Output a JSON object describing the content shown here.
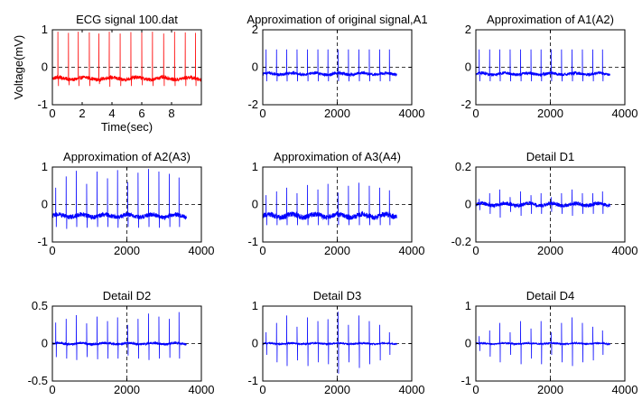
{
  "chart_data": [
    {
      "type": "line",
      "title": "ECG signal 100.dat",
      "xlabel": "Time(sec)",
      "ylabel": "Voltage(mV)",
      "xlim": [
        0,
        10
      ],
      "ylim": [
        -1,
        1
      ],
      "xticks": [
        0,
        2,
        4,
        6,
        8
      ],
      "yticks": [
        -1,
        0,
        1
      ],
      "color": "#ff0000",
      "grid": false,
      "baseline": -0.3,
      "noise": 0.05,
      "beats": [
        {
          "x": 0.37,
          "peak": 0.95,
          "dip": -0.5
        },
        {
          "x": 1.08,
          "peak": 0.92,
          "dip": -0.48
        },
        {
          "x": 1.74,
          "peak": 0.95,
          "dip": -0.5
        },
        {
          "x": 2.48,
          "peak": 0.93,
          "dip": -0.5
        },
        {
          "x": 3.12,
          "peak": 0.9,
          "dip": -0.45
        },
        {
          "x": 3.82,
          "peak": 0.95,
          "dip": -0.52
        },
        {
          "x": 4.55,
          "peak": 0.9,
          "dip": -0.5
        },
        {
          "x": 5.27,
          "peak": 0.94,
          "dip": -0.5
        },
        {
          "x": 6.0,
          "peak": 0.93,
          "dip": -0.48
        },
        {
          "x": 6.72,
          "peak": 0.95,
          "dip": -0.5
        },
        {
          "x": 7.47,
          "peak": 0.9,
          "dip": -0.5
        },
        {
          "x": 8.2,
          "peak": 0.95,
          "dip": -0.5
        },
        {
          "x": 8.92,
          "peak": 0.93,
          "dip": -0.5
        },
        {
          "x": 9.6,
          "peak": 0.92,
          "dip": -0.5
        }
      ]
    },
    {
      "type": "line",
      "title": "Approximation of original signal,A1",
      "xlim": [
        0,
        4000
      ],
      "ylim": [
        -2,
        2
      ],
      "xticks": [
        0,
        2000,
        4000
      ],
      "yticks": [
        -2,
        0,
        2
      ],
      "color": "#0000ff",
      "grid": false,
      "baseline": -0.35,
      "noise": 0.08,
      "center_line": 2000,
      "beats": [
        {
          "x": 90,
          "peak": 0.95,
          "dip": -0.75
        },
        {
          "x": 370,
          "peak": 0.95,
          "dip": -0.75
        },
        {
          "x": 640,
          "peak": 0.95,
          "dip": -0.75
        },
        {
          "x": 920,
          "peak": 0.95,
          "dip": -0.75
        },
        {
          "x": 1200,
          "peak": 0.95,
          "dip": -0.75
        },
        {
          "x": 1480,
          "peak": 0.95,
          "dip": -0.75
        },
        {
          "x": 1750,
          "peak": 0.95,
          "dip": -0.75
        },
        {
          "x": 2020,
          "peak": 0.95,
          "dip": -0.75
        },
        {
          "x": 2300,
          "peak": 0.95,
          "dip": -0.75
        },
        {
          "x": 2580,
          "peak": 0.95,
          "dip": -0.75
        },
        {
          "x": 2860,
          "peak": 0.95,
          "dip": -0.75
        },
        {
          "x": 3140,
          "peak": 0.95,
          "dip": -0.75
        },
        {
          "x": 3400,
          "peak": 0.95,
          "dip": -0.75
        }
      ],
      "x_end": 3600
    },
    {
      "type": "line",
      "title": "Approximation of A1(A2)",
      "xlim": [
        0,
        4000
      ],
      "ylim": [
        -2,
        2
      ],
      "xticks": [
        0,
        2000,
        4000
      ],
      "yticks": [
        -2,
        0,
        2
      ],
      "color": "#0000ff",
      "grid": false,
      "baseline": -0.35,
      "noise": 0.08,
      "center_line": 2000,
      "beats": [
        {
          "x": 90,
          "peak": 0.95,
          "dip": -0.75
        },
        {
          "x": 370,
          "peak": 0.95,
          "dip": -0.75
        },
        {
          "x": 640,
          "peak": 0.95,
          "dip": -0.75
        },
        {
          "x": 920,
          "peak": 0.95,
          "dip": -0.75
        },
        {
          "x": 1200,
          "peak": 0.95,
          "dip": -0.75
        },
        {
          "x": 1480,
          "peak": 0.95,
          "dip": -0.75
        },
        {
          "x": 1750,
          "peak": 0.95,
          "dip": -0.75
        },
        {
          "x": 2020,
          "peak": 0.95,
          "dip": -0.75
        },
        {
          "x": 2300,
          "peak": 0.95,
          "dip": -0.75
        },
        {
          "x": 2580,
          "peak": 0.95,
          "dip": -0.75
        },
        {
          "x": 2860,
          "peak": 0.95,
          "dip": -0.75
        },
        {
          "x": 3140,
          "peak": 0.95,
          "dip": -0.75
        },
        {
          "x": 3400,
          "peak": 0.95,
          "dip": -0.75
        }
      ],
      "x_end": 3600
    },
    {
      "type": "line",
      "title": "Approximation of A2(A3)",
      "xlim": [
        0,
        4000
      ],
      "ylim": [
        -1,
        1
      ],
      "xticks": [
        0,
        2000,
        4000
      ],
      "yticks": [
        -1,
        0,
        1
      ],
      "color": "#0000ff",
      "grid": false,
      "baseline": -0.3,
      "noise": 0.06,
      "center_line": 2000,
      "beats": [
        {
          "x": 90,
          "peak": 0.45,
          "dip": -0.6
        },
        {
          "x": 370,
          "peak": 0.75,
          "dip": -0.65
        },
        {
          "x": 640,
          "peak": 0.9,
          "dip": -0.6
        },
        {
          "x": 920,
          "peak": 0.55,
          "dip": -0.62
        },
        {
          "x": 1200,
          "peak": 0.88,
          "dip": -0.6
        },
        {
          "x": 1480,
          "peak": 0.7,
          "dip": -0.6
        },
        {
          "x": 1750,
          "peak": 0.92,
          "dip": -0.62
        },
        {
          "x": 2020,
          "peak": 0.6,
          "dip": -0.6
        },
        {
          "x": 2300,
          "peak": 0.85,
          "dip": -0.62
        },
        {
          "x": 2580,
          "peak": 0.95,
          "dip": -0.6
        },
        {
          "x": 2860,
          "peak": 0.88,
          "dip": -0.62
        },
        {
          "x": 3140,
          "peak": 0.82,
          "dip": -0.6
        },
        {
          "x": 3400,
          "peak": 0.72,
          "dip": -0.6
        }
      ],
      "x_end": 3600
    },
    {
      "type": "line",
      "title": "Approximation of A3(A4)",
      "xlim": [
        0,
        4000
      ],
      "ylim": [
        -1,
        1
      ],
      "xticks": [
        0,
        2000,
        4000
      ],
      "yticks": [
        -1,
        0,
        1
      ],
      "color": "#0000ff",
      "grid": false,
      "baseline": -0.3,
      "noise": 0.07,
      "center_line": 2000,
      "beats": [
        {
          "x": 90,
          "peak": 0.25,
          "dip": -0.55
        },
        {
          "x": 370,
          "peak": 0.35,
          "dip": -0.55
        },
        {
          "x": 640,
          "peak": 0.45,
          "dip": -0.55
        },
        {
          "x": 920,
          "peak": 0.3,
          "dip": -0.55
        },
        {
          "x": 1200,
          "peak": 0.52,
          "dip": -0.55
        },
        {
          "x": 1480,
          "peak": 0.4,
          "dip": -0.55
        },
        {
          "x": 1750,
          "peak": 0.55,
          "dip": -0.55
        },
        {
          "x": 2020,
          "peak": 0.32,
          "dip": -0.55
        },
        {
          "x": 2300,
          "peak": 0.5,
          "dip": -0.55
        },
        {
          "x": 2580,
          "peak": 0.58,
          "dip": -0.55
        },
        {
          "x": 2860,
          "peak": 0.5,
          "dip": -0.55
        },
        {
          "x": 3140,
          "peak": 0.45,
          "dip": -0.55
        },
        {
          "x": 3400,
          "peak": 0.38,
          "dip": -0.55
        }
      ],
      "x_end": 3600
    },
    {
      "type": "line",
      "title": "Detail D1",
      "xlim": [
        0,
        4000
      ],
      "ylim": [
        -0.2,
        0.2
      ],
      "xticks": [
        0,
        2000,
        4000
      ],
      "yticks": [
        -0.2,
        0,
        0.2
      ],
      "color": "#0000ff",
      "grid": false,
      "baseline": 0,
      "noise": 0.01,
      "center_line": 2000,
      "beats": [
        {
          "x": 90,
          "peak": 0.03,
          "dip": -0.03
        },
        {
          "x": 370,
          "peak": 0.06,
          "dip": -0.05
        },
        {
          "x": 640,
          "peak": 0.08,
          "dip": -0.07
        },
        {
          "x": 920,
          "peak": 0.04,
          "dip": -0.04
        },
        {
          "x": 1200,
          "peak": 0.07,
          "dip": -0.06
        },
        {
          "x": 1480,
          "peak": 0.05,
          "dip": -0.05
        },
        {
          "x": 1750,
          "peak": 0.06,
          "dip": -0.05
        },
        {
          "x": 2020,
          "peak": 0.04,
          "dip": -0.04
        },
        {
          "x": 2300,
          "peak": 0.06,
          "dip": -0.05
        },
        {
          "x": 2580,
          "peak": 0.08,
          "dip": -0.06
        },
        {
          "x": 2860,
          "peak": 0.06,
          "dip": -0.05
        },
        {
          "x": 3140,
          "peak": 0.06,
          "dip": -0.05
        },
        {
          "x": 3400,
          "peak": 0.07,
          "dip": -0.05
        }
      ],
      "x_end": 3600
    },
    {
      "type": "line",
      "title": "Detail D2",
      "xlim": [
        0,
        4000
      ],
      "ylim": [
        -0.5,
        0.5
      ],
      "xticks": [
        0,
        2000,
        4000
      ],
      "yticks": [
        -0.5,
        0,
        0.5
      ],
      "color": "#0000ff",
      "grid": false,
      "baseline": 0,
      "noise": 0.015,
      "center_line": 2000,
      "beats": [
        {
          "x": 90,
          "peak": 0.28,
          "dip": -0.18
        },
        {
          "x": 370,
          "peak": 0.33,
          "dip": -0.2
        },
        {
          "x": 640,
          "peak": 0.38,
          "dip": -0.22
        },
        {
          "x": 920,
          "peak": 0.27,
          "dip": -0.18
        },
        {
          "x": 1200,
          "peak": 0.36,
          "dip": -0.21
        },
        {
          "x": 1480,
          "peak": 0.3,
          "dip": -0.2
        },
        {
          "x": 1750,
          "peak": 0.35,
          "dip": -0.2
        },
        {
          "x": 2020,
          "peak": 0.25,
          "dip": -0.16
        },
        {
          "x": 2300,
          "peak": 0.33,
          "dip": -0.2
        },
        {
          "x": 2580,
          "peak": 0.4,
          "dip": -0.22
        },
        {
          "x": 2860,
          "peak": 0.36,
          "dip": -0.2
        },
        {
          "x": 3140,
          "peak": 0.33,
          "dip": -0.19
        },
        {
          "x": 3400,
          "peak": 0.42,
          "dip": -0.2
        }
      ],
      "x_end": 3600
    },
    {
      "type": "line",
      "title": "Detail D3",
      "xlim": [
        0,
        4000
      ],
      "ylim": [
        -1,
        1
      ],
      "xticks": [
        0,
        2000,
        4000
      ],
      "yticks": [
        -1,
        0,
        1
      ],
      "color": "#0000ff",
      "grid": false,
      "baseline": 0,
      "noise": 0.02,
      "center_line": 2000,
      "beats": [
        {
          "x": 90,
          "peak": 0.3,
          "dip": -0.3
        },
        {
          "x": 370,
          "peak": 0.55,
          "dip": -0.5
        },
        {
          "x": 640,
          "peak": 0.75,
          "dip": -0.6
        },
        {
          "x": 920,
          "peak": 0.45,
          "dip": -0.45
        },
        {
          "x": 1200,
          "peak": 0.7,
          "dip": -0.6
        },
        {
          "x": 1480,
          "peak": 0.6,
          "dip": -0.5
        },
        {
          "x": 1750,
          "peak": 0.65,
          "dip": -0.55
        },
        {
          "x": 2020,
          "peak": 0.85,
          "dip": -0.8
        },
        {
          "x": 2300,
          "peak": 0.5,
          "dip": -0.5
        },
        {
          "x": 2580,
          "peak": 0.75,
          "dip": -0.65
        },
        {
          "x": 2860,
          "peak": 0.6,
          "dip": -0.55
        },
        {
          "x": 3140,
          "peak": 0.5,
          "dip": -0.45
        },
        {
          "x": 3400,
          "peak": 0.3,
          "dip": -0.3
        }
      ],
      "x_end": 3600
    },
    {
      "type": "line",
      "title": "Detail D4",
      "xlim": [
        0,
        4000
      ],
      "ylim": [
        -1,
        1
      ],
      "xticks": [
        0,
        2000,
        4000
      ],
      "yticks": [
        -1,
        0,
        1
      ],
      "color": "#0000ff",
      "grid": false,
      "baseline": 0,
      "noise": 0.02,
      "center_line": 2000,
      "beats": [
        {
          "x": 90,
          "peak": 0.2,
          "dip": -0.2
        },
        {
          "x": 370,
          "peak": 0.35,
          "dip": -0.35
        },
        {
          "x": 640,
          "peak": 0.55,
          "dip": -0.5
        },
        {
          "x": 920,
          "peak": 0.3,
          "dip": -0.3
        },
        {
          "x": 1200,
          "peak": 0.6,
          "dip": -0.55
        },
        {
          "x": 1480,
          "peak": 0.4,
          "dip": -0.4
        },
        {
          "x": 1750,
          "peak": 0.6,
          "dip": -0.55
        },
        {
          "x": 2020,
          "peak": 0.3,
          "dip": -0.3
        },
        {
          "x": 2300,
          "peak": 0.55,
          "dip": -0.5
        },
        {
          "x": 2580,
          "peak": 0.7,
          "dip": -0.6
        },
        {
          "x": 2860,
          "peak": 0.55,
          "dip": -0.5
        },
        {
          "x": 3140,
          "peak": 0.45,
          "dip": -0.45
        },
        {
          "x": 3400,
          "peak": 0.35,
          "dip": -0.3
        }
      ],
      "x_end": 3600
    }
  ]
}
